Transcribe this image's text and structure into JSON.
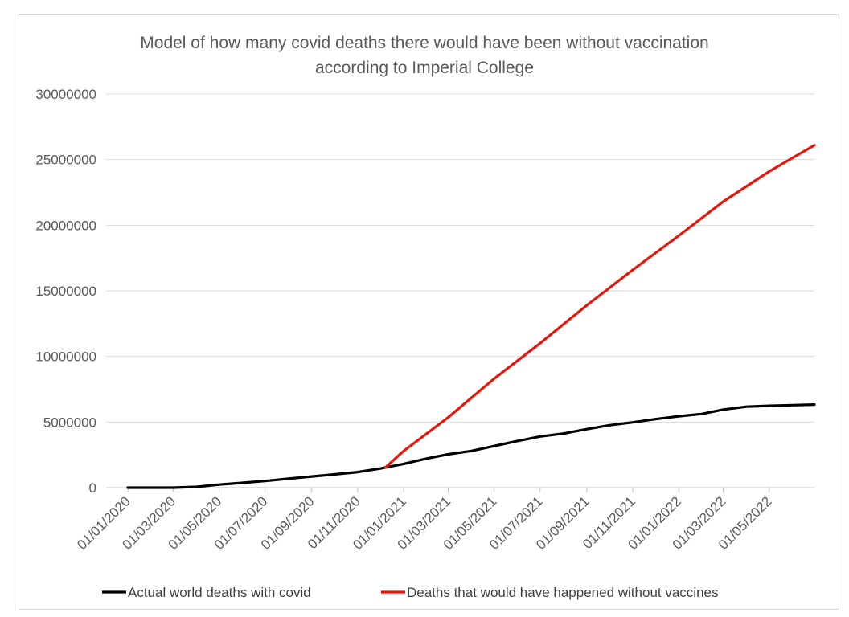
{
  "chart_data": {
    "type": "line",
    "title_line1": "Model of how many covid deaths there would have been without vaccination",
    "title_line2": "according to Imperial College",
    "xlabel": "",
    "ylabel": "",
    "ylim": [
      0,
      30000000
    ],
    "y_ticks": [
      "0",
      "5000000",
      "10000000",
      "15000000",
      "20000000",
      "25000000",
      "30000000"
    ],
    "x_ticks": [
      "01/01/2020",
      "01/03/2020",
      "01/05/2020",
      "01/07/2020",
      "01/09/2020",
      "01/11/2020",
      "01/01/2021",
      "01/03/2021",
      "01/05/2021",
      "01/07/2021",
      "01/09/2021",
      "01/11/2021",
      "01/01/2022",
      "01/03/2022",
      "01/05/2022"
    ],
    "grid": "horizontal",
    "legend_position": "bottom",
    "series": [
      {
        "name": "Actual world deaths with covid",
        "color": "#000000",
        "points": [
          [
            "2020-01-01",
            0
          ],
          [
            "2020-02-01",
            0
          ],
          [
            "2020-03-01",
            3000
          ],
          [
            "2020-04-01",
            60000
          ],
          [
            "2020-05-01",
            230000
          ],
          [
            "2020-06-01",
            370000
          ],
          [
            "2020-07-01",
            510000
          ],
          [
            "2020-08-01",
            680000
          ],
          [
            "2020-09-01",
            850000
          ],
          [
            "2020-10-01",
            1010000
          ],
          [
            "2020-11-01",
            1190000
          ],
          [
            "2020-12-01",
            1460000
          ],
          [
            "2021-01-01",
            1810000
          ],
          [
            "2021-02-01",
            2220000
          ],
          [
            "2021-03-01",
            2540000
          ],
          [
            "2021-04-01",
            2800000
          ],
          [
            "2021-05-01",
            3170000
          ],
          [
            "2021-06-01",
            3560000
          ],
          [
            "2021-07-01",
            3900000
          ],
          [
            "2021-08-01",
            4120000
          ],
          [
            "2021-09-01",
            4460000
          ],
          [
            "2021-10-01",
            4760000
          ],
          [
            "2021-11-01",
            4980000
          ],
          [
            "2021-12-01",
            5220000
          ],
          [
            "2022-01-01",
            5440000
          ],
          [
            "2022-02-01",
            5620000
          ],
          [
            "2022-03-01",
            5950000
          ],
          [
            "2022-04-01",
            6170000
          ],
          [
            "2022-05-01",
            6240000
          ],
          [
            "2022-06-01",
            6290000
          ],
          [
            "2022-06-30",
            6330000
          ]
        ]
      },
      {
        "name": "Deaths that would have happened without vaccines",
        "color": "#e8150a",
        "points": [
          [
            "2020-12-08",
            1550000
          ],
          [
            "2021-01-01",
            2800000
          ],
          [
            "2021-03-01",
            5350000
          ],
          [
            "2021-05-01",
            8300000
          ],
          [
            "2021-07-01",
            11000000
          ],
          [
            "2021-09-01",
            13900000
          ],
          [
            "2021-11-01",
            16600000
          ],
          [
            "2022-01-01",
            19200000
          ],
          [
            "2022-03-01",
            21800000
          ],
          [
            "2022-05-01",
            24100000
          ],
          [
            "2022-06-30",
            26100000
          ]
        ]
      }
    ]
  }
}
